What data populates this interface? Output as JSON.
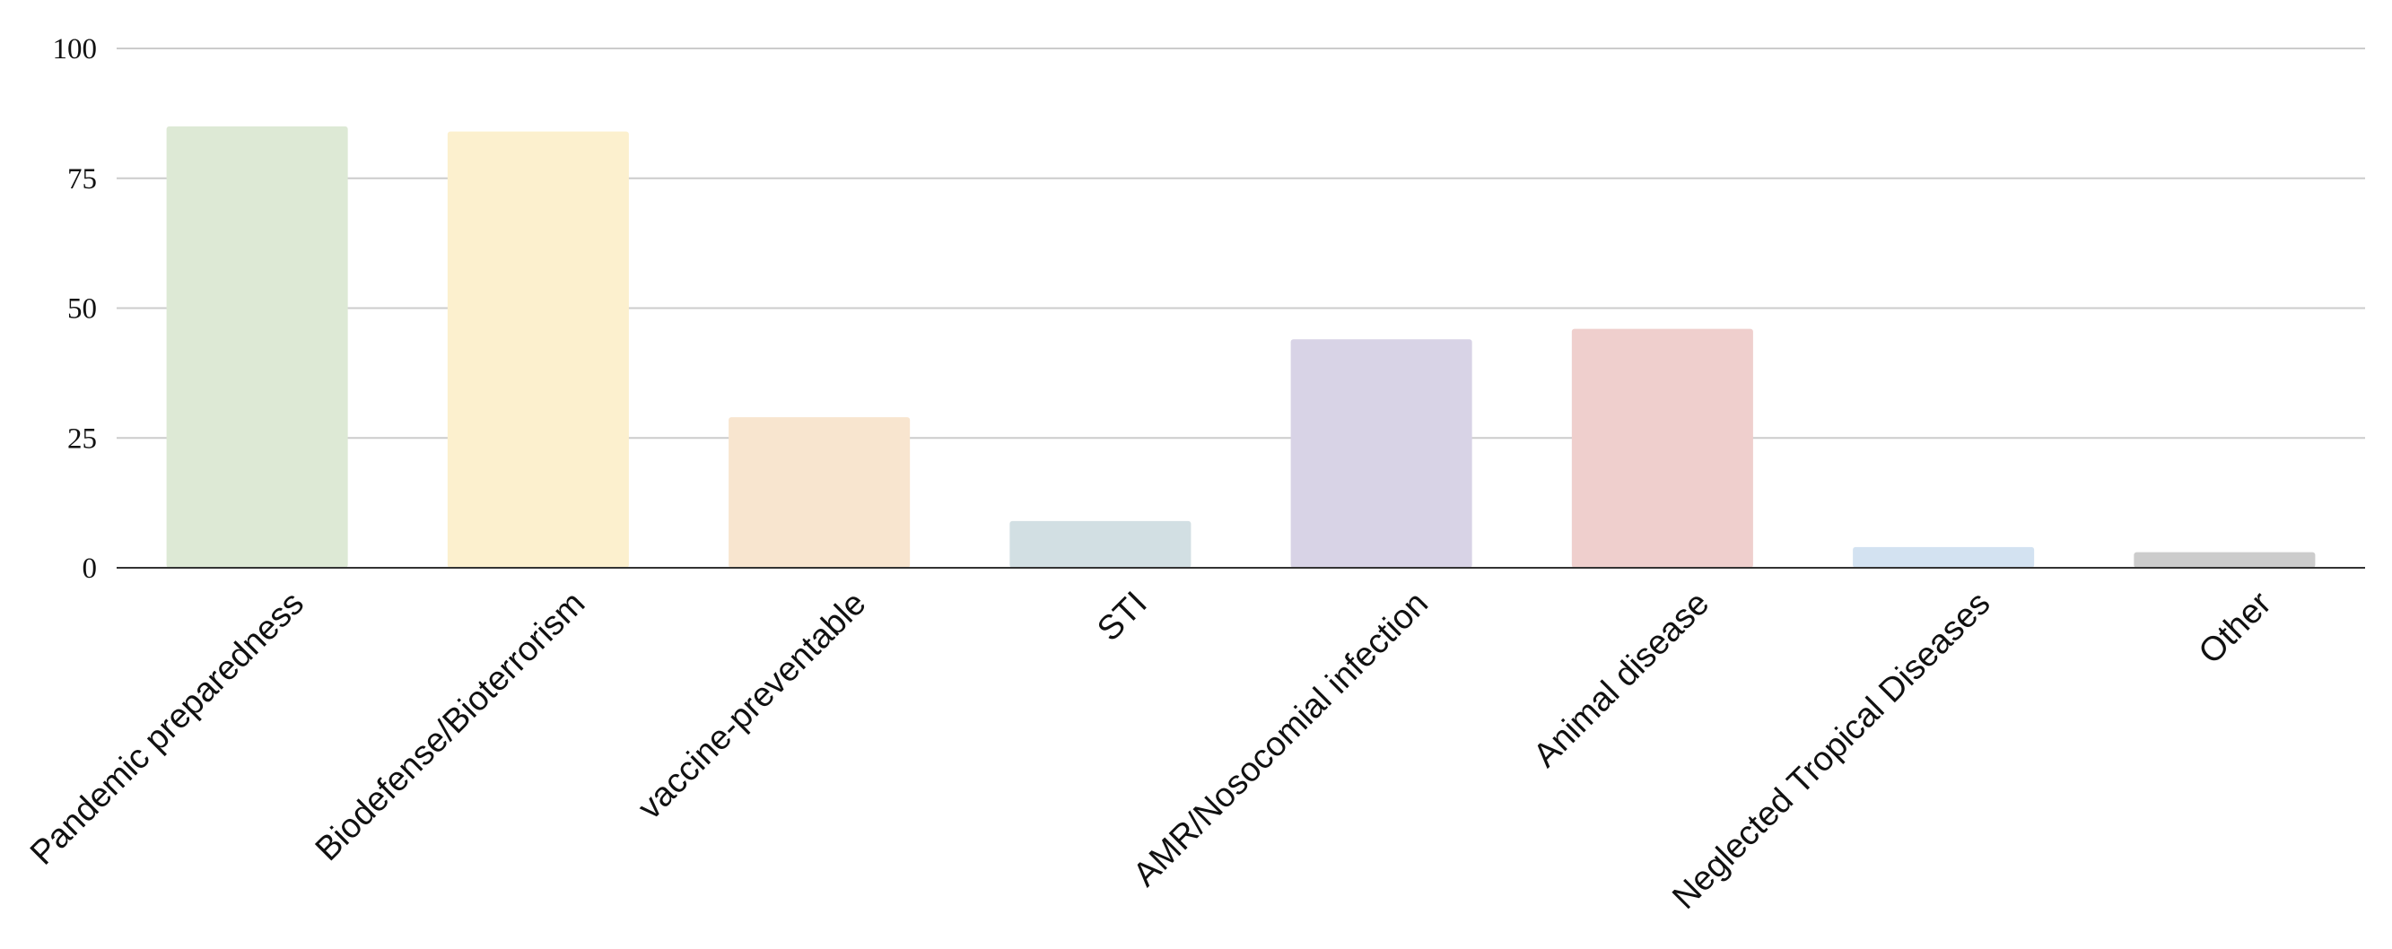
{
  "chart_data": {
    "type": "bar",
    "title": "",
    "xlabel": "",
    "ylabel": "",
    "ylim": [
      0,
      100
    ],
    "yticks": [
      0,
      25,
      50,
      75,
      100
    ],
    "grid": true,
    "categories": [
      "Pandemic preparedness",
      "Biodefense/Bioterrorism",
      "vaccine-preventable",
      "STI",
      "AMR/Nosocomial infection",
      "Animal disease",
      "Neglected Tropical Diseases",
      "Other"
    ],
    "values": [
      85,
      84,
      29,
      9,
      44,
      46,
      4,
      3
    ],
    "colors": [
      "#dde9d5",
      "#fcf0ce",
      "#f8e5cf",
      "#d2dfe3",
      "#d8d3e6",
      "#efcfcd",
      "#d3e2f1",
      "#cccccc"
    ]
  }
}
